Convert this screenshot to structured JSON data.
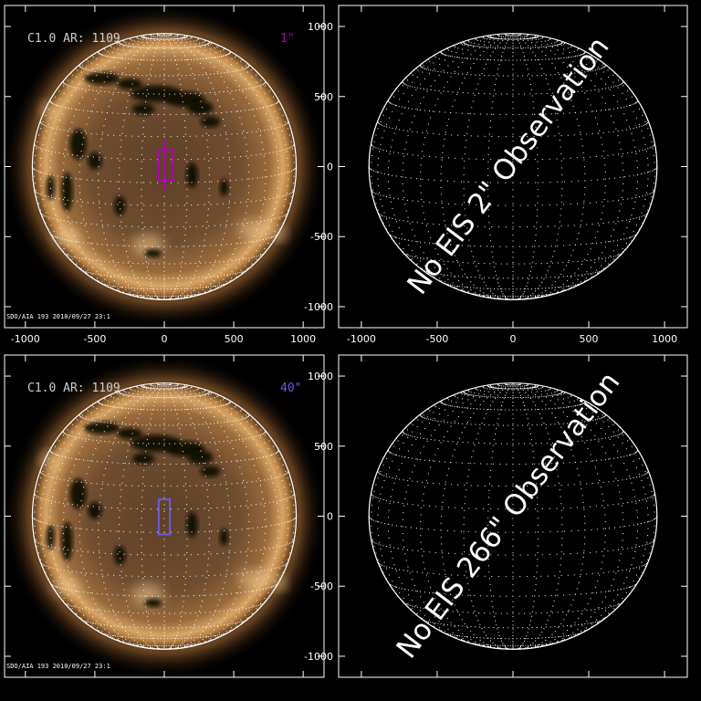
{
  "panels": [
    {
      "has_image": true,
      "title": "C1.0 AR: 1109",
      "slit_label": "1\"",
      "slit_color": "#b300b3",
      "footer": "SDO/AIA 193 2010/09/27 23:1"
    },
    {
      "has_image": false,
      "message": "No EIS 2\" Observation"
    },
    {
      "has_image": true,
      "title": "C1.0 AR: 1109",
      "slit_label": "40\"",
      "slit_color": "#6a5ae0",
      "footer": "SDO/AIA 193 2010/09/27 23:1"
    },
    {
      "has_image": false,
      "message": "No EIS 266\" Observation"
    }
  ],
  "axes": {
    "x_ticks": [
      -1000,
      -500,
      0,
      500,
      1000
    ],
    "y_ticks": [
      1000,
      500,
      0,
      -500,
      -1000
    ],
    "range": [
      -1150,
      1150
    ],
    "solar_radius": 950
  },
  "colors": {
    "background": "#000000",
    "axis": "#ffffff",
    "grid": "#ffffff",
    "sun_core": "#6b4a2d",
    "sun_corona": "#d9a060",
    "coronal_hole": "#0b0704",
    "title_text": "#cfcfcf"
  }
}
